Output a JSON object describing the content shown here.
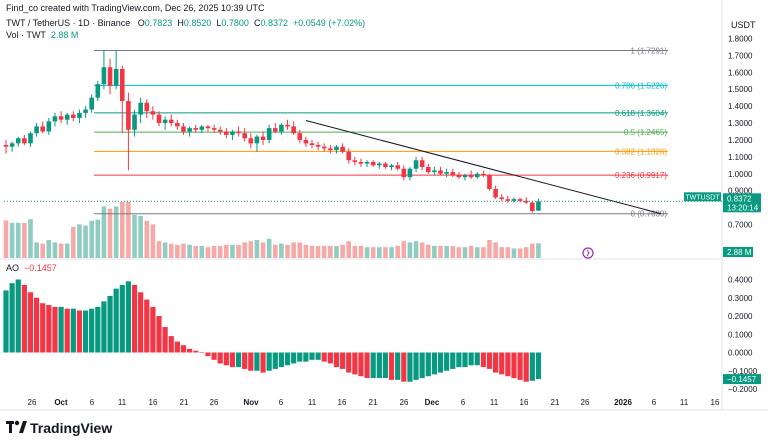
{
  "header": {
    "created_by": "Find_co created with TradingView.com, Dec 26, 2025 10:39 UTC",
    "symbol": "TWT / TetherUS · 1D · Binance",
    "ohlc": {
      "o_label": "O",
      "o": "0.7823",
      "h_label": "H",
      "h": "0.8520",
      "l_label": "L",
      "l": "0.7800",
      "c_label": "C",
      "c": "0.8372",
      "change": "+0.0549 (+7.02%)"
    },
    "volume": {
      "label": "Vol · TWT",
      "value": "2.88 M"
    },
    "currency": "USDT"
  },
  "oscillator": {
    "label": "AO",
    "value": "−0.1457"
  },
  "brand": {
    "name": "TradingView"
  },
  "colors": {
    "up": "#089981",
    "down": "#f23645",
    "up_vol": "#8fccc1",
    "down_vol": "#f7a9a7",
    "fib_1": "#787b86",
    "fib_786": "#00bcd4",
    "fib_618": "#089981",
    "fib_5": "#4caf50",
    "fib_382": "#ff9800",
    "fib_236": "#f23645",
    "fib_0": "#787b86",
    "trend": "#131722",
    "price_tag": "#089981",
    "ao_tag": "#089981"
  },
  "chart_data": [
    {
      "type": "candlestick",
      "pair": "TWT/USDT",
      "interval": "1D",
      "x_ticks": [
        "26",
        "Oct",
        "6",
        "11",
        "16",
        "21",
        "26",
        "Nov",
        "6",
        "11",
        "16",
        "21",
        "26",
        "Dec",
        "6",
        "11",
        "16",
        "21",
        "26",
        "2026",
        "6",
        "11",
        "16"
      ],
      "y_ticks": [
        "1.8000",
        "1.7000",
        "1.6000",
        "1.5000",
        "1.4000",
        "1.3000",
        "1.2000",
        "1.1000",
        "1.0000",
        "0.9000",
        "0.7000"
      ],
      "ylim": [
        0.74,
        1.85
      ],
      "candles": [
        [
          1.17,
          1.2,
          1.12,
          1.16
        ],
        [
          1.16,
          1.19,
          1.13,
          1.18
        ],
        [
          1.18,
          1.22,
          1.16,
          1.21
        ],
        [
          1.21,
          1.23,
          1.17,
          1.18
        ],
        [
          1.18,
          1.25,
          1.16,
          1.24
        ],
        [
          1.24,
          1.3,
          1.22,
          1.28
        ],
        [
          1.28,
          1.31,
          1.24,
          1.25
        ],
        [
          1.25,
          1.33,
          1.23,
          1.31
        ],
        [
          1.31,
          1.36,
          1.28,
          1.34
        ],
        [
          1.34,
          1.37,
          1.3,
          1.32
        ],
        [
          1.32,
          1.36,
          1.29,
          1.35
        ],
        [
          1.35,
          1.37,
          1.31,
          1.33
        ],
        [
          1.33,
          1.38,
          1.3,
          1.36
        ],
        [
          1.36,
          1.4,
          1.33,
          1.38
        ],
        [
          1.38,
          1.47,
          1.36,
          1.45
        ],
        [
          1.45,
          1.55,
          1.43,
          1.53
        ],
        [
          1.53,
          1.73,
          1.5,
          1.63
        ],
        [
          1.63,
          1.68,
          1.47,
          1.52
        ],
        [
          1.52,
          1.73,
          1.5,
          1.62
        ],
        [
          1.62,
          1.64,
          1.24,
          1.43
        ],
        [
          1.43,
          1.48,
          1.02,
          1.26
        ],
        [
          1.26,
          1.38,
          1.22,
          1.35
        ],
        [
          1.35,
          1.45,
          1.3,
          1.42
        ],
        [
          1.42,
          1.44,
          1.33,
          1.37
        ],
        [
          1.37,
          1.4,
          1.32,
          1.35
        ],
        [
          1.35,
          1.37,
          1.28,
          1.3
        ],
        [
          1.3,
          1.34,
          1.26,
          1.32
        ],
        [
          1.32,
          1.35,
          1.28,
          1.3
        ],
        [
          1.3,
          1.32,
          1.26,
          1.28
        ],
        [
          1.28,
          1.3,
          1.23,
          1.25
        ],
        [
          1.25,
          1.28,
          1.22,
          1.27
        ],
        [
          1.27,
          1.29,
          1.24,
          1.26
        ],
        [
          1.26,
          1.29,
          1.24,
          1.28
        ],
        [
          1.28,
          1.29,
          1.25,
          1.27
        ],
        [
          1.27,
          1.29,
          1.24,
          1.26
        ],
        [
          1.26,
          1.28,
          1.23,
          1.25
        ],
        [
          1.25,
          1.27,
          1.21,
          1.23
        ],
        [
          1.23,
          1.26,
          1.2,
          1.25
        ],
        [
          1.25,
          1.28,
          1.22,
          1.24
        ],
        [
          1.24,
          1.27,
          1.19,
          1.21
        ],
        [
          1.21,
          1.24,
          1.15,
          1.18
        ],
        [
          1.18,
          1.23,
          1.13,
          1.22
        ],
        [
          1.22,
          1.25,
          1.17,
          1.2
        ],
        [
          1.2,
          1.29,
          1.18,
          1.27
        ],
        [
          1.27,
          1.3,
          1.24,
          1.25
        ],
        [
          1.25,
          1.3,
          1.23,
          1.29
        ],
        [
          1.29,
          1.32,
          1.26,
          1.28
        ],
        [
          1.28,
          1.31,
          1.23,
          1.24
        ],
        [
          1.24,
          1.26,
          1.18,
          1.2
        ],
        [
          1.2,
          1.22,
          1.16,
          1.18
        ],
        [
          1.18,
          1.2,
          1.15,
          1.17
        ],
        [
          1.17,
          1.19,
          1.14,
          1.16
        ],
        [
          1.16,
          1.18,
          1.13,
          1.15
        ],
        [
          1.15,
          1.17,
          1.12,
          1.14
        ],
        [
          1.14,
          1.17,
          1.12,
          1.16
        ],
        [
          1.16,
          1.18,
          1.12,
          1.13
        ],
        [
          1.13,
          1.15,
          1.06,
          1.08
        ],
        [
          1.08,
          1.1,
          1.05,
          1.07
        ],
        [
          1.07,
          1.09,
          1.04,
          1.06
        ],
        [
          1.06,
          1.08,
          1.04,
          1.07
        ],
        [
          1.07,
          1.08,
          1.04,
          1.05
        ],
        [
          1.05,
          1.07,
          1.03,
          1.06
        ],
        [
          1.06,
          1.07,
          1.03,
          1.04
        ],
        [
          1.04,
          1.06,
          1.02,
          1.05
        ],
        [
          1.05,
          1.07,
          1.02,
          1.03
        ],
        [
          1.03,
          1.05,
          0.96,
          0.98
        ],
        [
          0.98,
          1.04,
          0.96,
          1.03
        ],
        [
          1.03,
          1.1,
          1.01,
          1.08
        ],
        [
          1.08,
          1.1,
          1.02,
          1.04
        ],
        [
          1.04,
          1.06,
          1.0,
          1.01
        ],
        [
          1.01,
          1.04,
          0.99,
          1.02
        ],
        [
          1.02,
          1.04,
          0.99,
          1.0
        ],
        [
          1.0,
          1.03,
          0.98,
          1.01
        ],
        [
          1.01,
          1.03,
          0.98,
          0.99
        ],
        [
          0.99,
          1.01,
          0.97,
          0.98
        ],
        [
          0.98,
          1.0,
          0.96,
          0.99
        ],
        [
          0.99,
          1.02,
          0.97,
          0.98
        ],
        [
          0.98,
          1.01,
          0.97,
          1.0
        ],
        [
          1.0,
          1.02,
          0.98,
          0.99
        ],
        [
          0.99,
          1.0,
          0.9,
          0.91
        ],
        [
          0.91,
          0.93,
          0.85,
          0.86
        ],
        [
          0.86,
          0.88,
          0.84,
          0.85
        ],
        [
          0.85,
          0.87,
          0.83,
          0.84
        ],
        [
          0.84,
          0.86,
          0.83,
          0.85
        ],
        [
          0.85,
          0.86,
          0.83,
          0.84
        ],
        [
          0.84,
          0.86,
          0.82,
          0.83
        ],
        [
          0.83,
          0.84,
          0.77,
          0.78
        ],
        [
          0.7823,
          0.852,
          0.78,
          0.8372
        ]
      ],
      "volume_ticks": [
        "2.88 M"
      ],
      "fib_levels": [
        {
          "label": "1 (1.7291)",
          "value": 1.7291
        },
        {
          "label": "0.786 (1.5226)",
          "value": 1.5226
        },
        {
          "label": "0.618 (1.3604)",
          "value": 1.3604
        },
        {
          "label": "0.5 (1.2465)",
          "value": 1.2465
        },
        {
          "label": "0.382 (1.1326)",
          "value": 1.1326
        },
        {
          "label": "0.236 (0.9917)",
          "value": 0.9917
        },
        {
          "label": "0 (0.7639)",
          "value": 0.7639
        }
      ],
      "last_price": {
        "symbol": "TWTUSDT",
        "value": "0.8372",
        "countdown": "13:20:14"
      }
    },
    {
      "type": "bar",
      "name": "AO",
      "y_ticks": [
        "0.4000",
        "0.3000",
        "0.2000",
        "0.1000",
        "0.0000",
        "−0.1000",
        "−0.2000"
      ],
      "ylim": [
        -0.23,
        0.46
      ],
      "values": [
        0.34,
        0.38,
        0.4,
        0.37,
        0.33,
        0.3,
        0.27,
        0.26,
        0.25,
        0.25,
        0.24,
        0.24,
        0.23,
        0.23,
        0.24,
        0.25,
        0.28,
        0.31,
        0.35,
        0.37,
        0.39,
        0.37,
        0.33,
        0.29,
        0.25,
        0.2,
        0.14,
        0.09,
        0.06,
        0.04,
        0.02,
        0.01,
        0.0,
        -0.02,
        -0.04,
        -0.06,
        -0.07,
        -0.08,
        -0.08,
        -0.09,
        -0.1,
        -0.1,
        -0.11,
        -0.1,
        -0.09,
        -0.08,
        -0.07,
        -0.06,
        -0.05,
        -0.05,
        -0.04,
        -0.04,
        -0.05,
        -0.06,
        -0.08,
        -0.09,
        -0.11,
        -0.12,
        -0.13,
        -0.14,
        -0.14,
        -0.14,
        -0.14,
        -0.15,
        -0.15,
        -0.16,
        -0.16,
        -0.15,
        -0.14,
        -0.13,
        -0.12,
        -0.11,
        -0.1,
        -0.09,
        -0.08,
        -0.08,
        -0.07,
        -0.07,
        -0.08,
        -0.09,
        -0.11,
        -0.12,
        -0.13,
        -0.14,
        -0.15,
        -0.16,
        -0.155,
        -0.1457
      ],
      "last_value": "−0.1457"
    }
  ]
}
